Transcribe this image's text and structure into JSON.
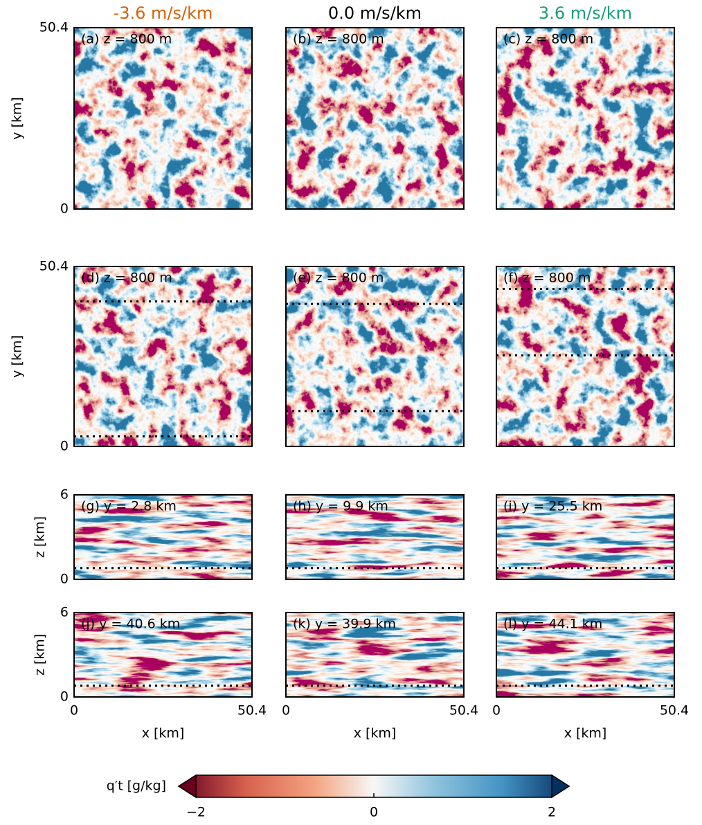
{
  "columns": [
    {
      "title": "-3.6 m/s/km",
      "color": "#d95f02"
    },
    {
      "title": "0.0 m/s/km",
      "color": "#000000"
    },
    {
      "title": "3.6 m/s/km",
      "color": "#1b9e77"
    }
  ],
  "axes": {
    "x": {
      "label": "x [km]",
      "lim": [
        0,
        50.4
      ],
      "ticks": [
        0,
        50.4
      ]
    },
    "y": {
      "label": "y [km]",
      "lim": [
        0,
        50.4
      ],
      "ticks": [
        0,
        50.4
      ]
    },
    "z": {
      "label": "z [km]",
      "lim": [
        0,
        6
      ],
      "ticks": [
        0,
        6
      ]
    }
  },
  "panels": [
    {
      "label": "(a) z = 800 m"
    },
    {
      "label": "(b) z = 800 m"
    },
    {
      "label": "(c) z = 800 m"
    },
    {
      "label": "(d) z = 800 m"
    },
    {
      "label": "(e) z = 800 m"
    },
    {
      "label": "(f) z = 800 m"
    },
    {
      "label": "(g) y = 2.8 km",
      "cut_y": 2.8,
      "level_z": 0.8
    },
    {
      "label": "(h) y = 9.9 km",
      "cut_y": 9.9,
      "level_z": 0.8
    },
    {
      "label": "(i) y = 25.5 km",
      "cut_y": 25.5,
      "level_z": 0.8
    },
    {
      "label": "(j) y = 40.6 km",
      "cut_y": 40.6,
      "level_z": 0.8
    },
    {
      "label": "(k) y = 39.9 km",
      "cut_y": 39.9,
      "level_z": 0.8
    },
    {
      "label": "(l) y = 44.1 km",
      "cut_y": 44.1,
      "level_z": 0.8
    }
  ],
  "colorbar": {
    "label": "q′t [g/kg]",
    "lim": [
      -2,
      2
    ],
    "ticks": [
      {
        "value": -2,
        "label": "−2"
      },
      0,
      2
    ]
  }
}
